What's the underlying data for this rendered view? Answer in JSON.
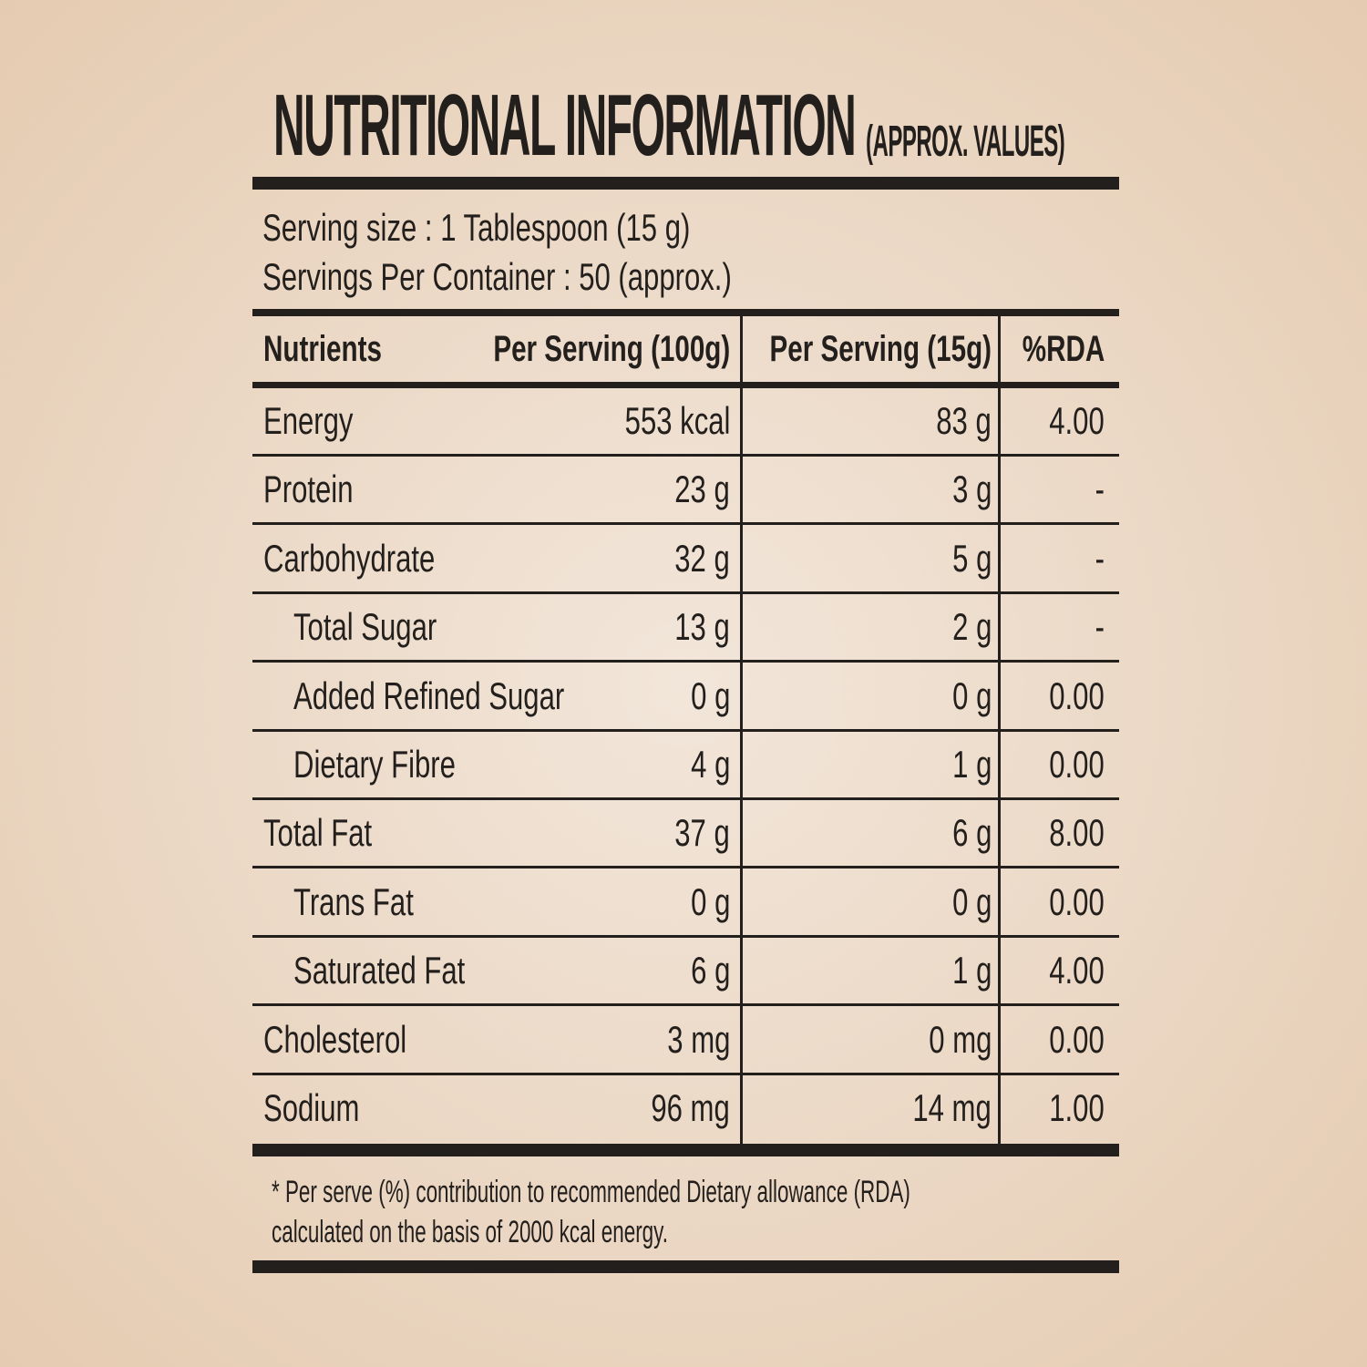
{
  "title": "NUTRITIONAL INFORMATION",
  "subtitle": "(APPROX. VALUES)",
  "serving_size": "Serving size : 1 Tablespoon (15 g)",
  "servings_per_container": "Servings Per Container : 50 (approx.)",
  "table": {
    "headers": [
      "Nutrients",
      "Per Serving (100g)",
      "Per Serving (15g)",
      "%RDA"
    ],
    "rows": [
      {
        "name": "Energy",
        "per100": "553 kcal",
        "per15": "83 g",
        "rda": "4.00",
        "sub": false
      },
      {
        "name": "Protein",
        "per100": "23 g",
        "per15": "3 g",
        "rda": "-",
        "sub": false
      },
      {
        "name": "Carbohydrate",
        "per100": "32 g",
        "per15": "5 g",
        "rda": "-",
        "sub": false
      },
      {
        "name": "Total Sugar",
        "per100": "13 g",
        "per15": "2 g",
        "rda": "-",
        "sub": true
      },
      {
        "name": "Added Refined Sugar",
        "per100": "0 g",
        "per15": "0 g",
        "rda": "0.00",
        "sub": true
      },
      {
        "name": "Dietary Fibre",
        "per100": "4 g",
        "per15": "1 g",
        "rda": "0.00",
        "sub": true
      },
      {
        "name": "Total Fat",
        "per100": "37 g",
        "per15": "6 g",
        "rda": "8.00",
        "sub": false
      },
      {
        "name": "Trans Fat",
        "per100": "0 g",
        "per15": "0 g",
        "rda": "0.00",
        "sub": true
      },
      {
        "name": "Saturated Fat",
        "per100": "6 g",
        "per15": "1 g",
        "rda": "4.00",
        "sub": true
      },
      {
        "name": "Cholesterol",
        "per100": "3 mg",
        "per15": "0 mg",
        "rda": "0.00",
        "sub": false
      },
      {
        "name": "Sodium",
        "per100": "96 mg",
        "per15": "14 mg",
        "rda": "1.00",
        "sub": false
      }
    ]
  },
  "footnote": [
    "* Per serve (%) contribution to recommended Dietary allowance (RDA)",
    "calculated on the basis of 2000 kcal energy."
  ],
  "colors": {
    "text": "#231f1c",
    "background": "#ecdac8"
  }
}
